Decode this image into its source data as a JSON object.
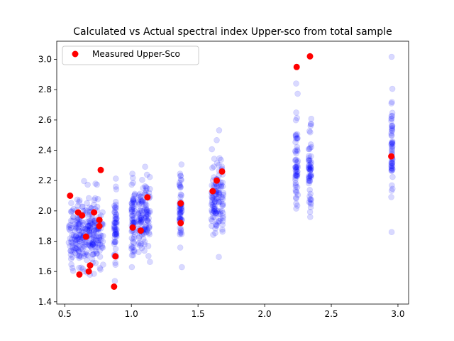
{
  "chart_data": {
    "type": "scatter",
    "title": "Calculated vs Actual spectral index Upper-sco from total sample",
    "xlabel": "",
    "ylabel": "",
    "xlim": [
      0.44,
      3.08
    ],
    "ylim": [
      1.385,
      3.12
    ],
    "xticks": [
      0.5,
      1.0,
      1.5,
      2.0,
      2.5,
      3.0
    ],
    "xtick_labels": [
      "0.5",
      "1.0",
      "1.5",
      "2.0",
      "2.5",
      "3.0"
    ],
    "yticks": [
      1.4,
      1.6,
      1.8,
      2.0,
      2.2,
      2.4,
      2.6,
      2.8,
      3.0
    ],
    "ytick_labels": [
      "1.4",
      "1.6",
      "1.8",
      "2.0",
      "2.2",
      "2.4",
      "2.6",
      "2.8",
      "3.0"
    ],
    "grid": false,
    "legend": {
      "placement": "top-left",
      "entries": [
        {
          "label": "Measured Upper-Sco",
          "color": "#ff0000"
        }
      ]
    },
    "series": [
      {
        "name": "",
        "role": "calculated",
        "color": "#0000ff",
        "alpha": 0.15,
        "bands": [
          {
            "x": [
              0.53,
              0.79
            ],
            "ymin": 1.48,
            "ymax": 2.22
          },
          {
            "x": [
              0.87,
              0.89
            ],
            "ymin": 1.51,
            "ymax": 2.28
          },
          {
            "x": [
              1.0,
              1.03
            ],
            "ymin": 1.55,
            "ymax": 2.32
          },
          {
            "x": [
              1.05,
              1.14
            ],
            "ymin": 1.56,
            "ymax": 2.36
          },
          {
            "x": [
              1.36,
              1.38
            ],
            "ymin": 1.59,
            "ymax": 2.46
          },
          {
            "x": [
              1.6,
              1.69
            ],
            "ymin": 1.63,
            "ymax": 2.56
          },
          {
            "x": [
              2.23,
              2.25
            ],
            "ymin": 1.72,
            "ymax": 2.85
          },
          {
            "x": [
              2.33,
              2.35
            ],
            "ymin": 1.74,
            "ymax": 2.81
          },
          {
            "x": [
              2.95,
              2.96
            ],
            "ymin": 1.8,
            "ymax": 3.04
          }
        ]
      },
      {
        "name": "Measured Upper-Sco",
        "role": "measured",
        "color": "#ff0000",
        "points": [
          [
            0.54,
            2.1
          ],
          [
            0.6,
            1.99
          ],
          [
            0.61,
            1.58
          ],
          [
            0.63,
            1.97
          ],
          [
            0.66,
            1.83
          ],
          [
            0.68,
            1.6
          ],
          [
            0.69,
            1.64
          ],
          [
            0.72,
            1.99
          ],
          [
            0.76,
            1.9
          ],
          [
            0.76,
            1.94
          ],
          [
            0.77,
            2.27
          ],
          [
            0.87,
            1.5
          ],
          [
            0.88,
            1.7
          ],
          [
            1.01,
            1.89
          ],
          [
            1.07,
            1.87
          ],
          [
            1.12,
            2.09
          ],
          [
            1.37,
            2.05
          ],
          [
            1.37,
            1.92
          ],
          [
            1.61,
            2.13
          ],
          [
            1.64,
            2.2
          ],
          [
            1.68,
            2.26
          ],
          [
            2.24,
            2.95
          ],
          [
            2.34,
            3.02
          ],
          [
            2.95,
            2.36
          ]
        ]
      }
    ]
  }
}
